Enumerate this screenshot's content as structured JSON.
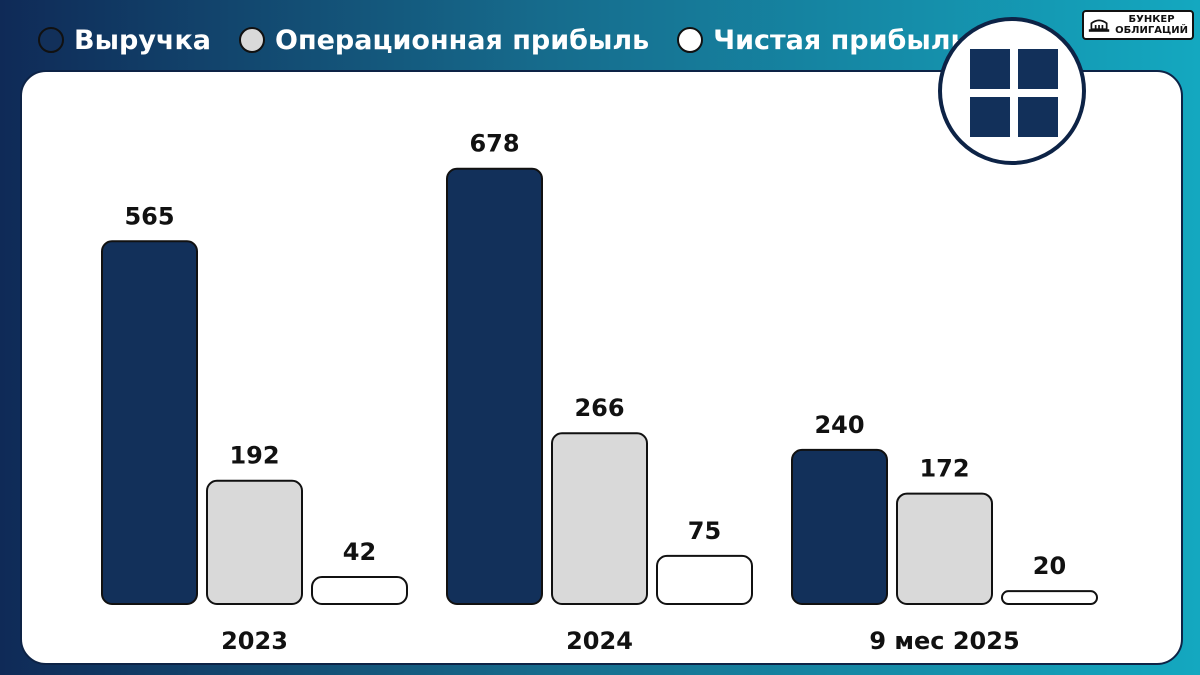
{
  "legend": [
    {
      "label": "Выручка",
      "color": "#12305a"
    },
    {
      "label": "Операционная прибыль",
      "color": "#d9d9d9"
    },
    {
      "label": "Чистая прибыль",
      "color": "#ffffff"
    }
  ],
  "brand": {
    "name": "БУНКЕР\nОБЛИГАЦИЙ",
    "logo_icon": "bunker-building-icon",
    "emblem_icon": "four-squares-emblem-icon"
  },
  "chart_data": {
    "type": "bar",
    "categories": [
      "2023",
      "2024",
      "9 мес 2025"
    ],
    "series": [
      {
        "name": "Выручка",
        "color": "#12305a",
        "values": [
          565,
          678,
          240
        ]
      },
      {
        "name": "Операционная прибыль",
        "color": "#d9d9d9",
        "values": [
          192,
          266,
          172
        ]
      },
      {
        "name": "Чистая прибыль",
        "color": "#ffffff",
        "values": [
          42,
          75,
          20
        ]
      }
    ],
    "title": "",
    "xlabel": "",
    "ylabel": "",
    "ylim": [
      0,
      700
    ],
    "grid": false,
    "legend_position": "top-left"
  }
}
